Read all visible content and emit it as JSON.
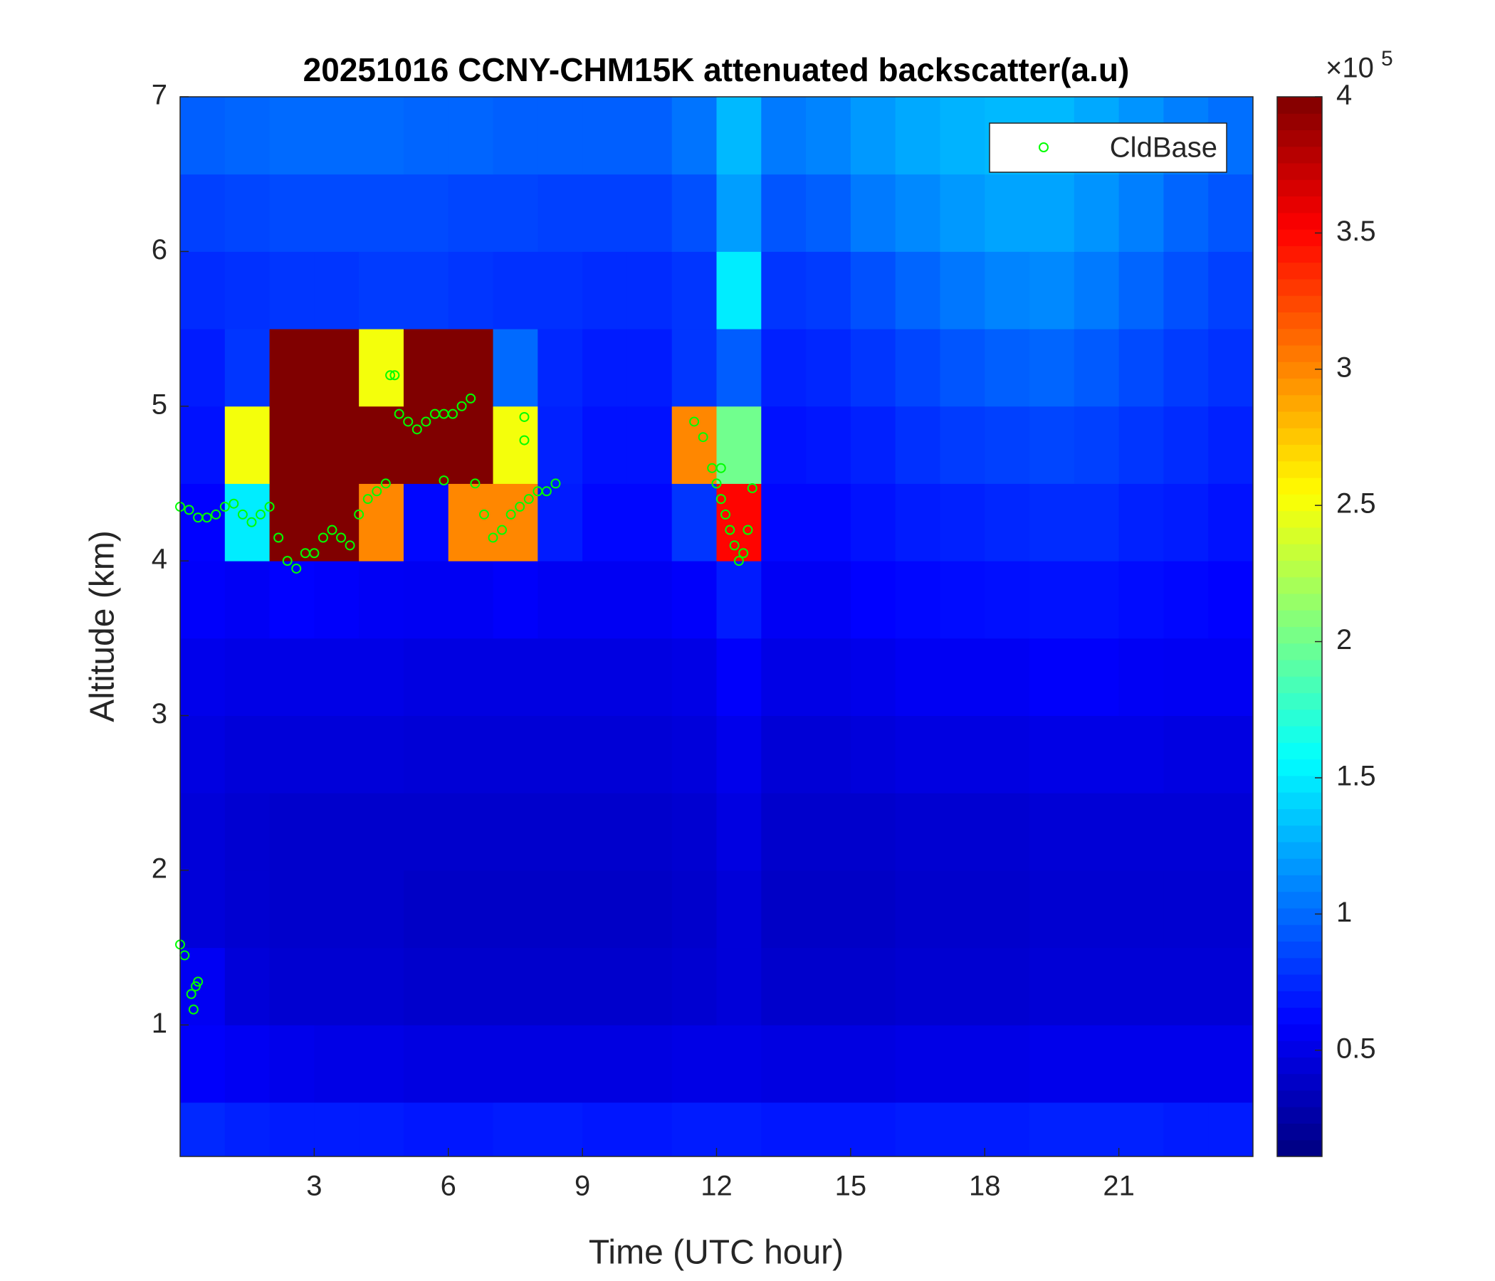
{
  "chart_data": {
    "type": "heatmap",
    "title": "20251016 CCNY-CHM15K attenuated backscatter(a.u)",
    "xlabel": "Time (UTC hour)",
    "ylabel": "Altitude (km)",
    "xlim": [
      0,
      24
    ],
    "ylim": [
      0.15,
      7
    ],
    "xticks": [
      3,
      6,
      9,
      12,
      15,
      18,
      21
    ],
    "yticks": [
      1,
      2,
      3,
      4,
      5,
      6,
      7
    ],
    "x_bins": [
      0,
      1,
      2,
      3,
      4,
      5,
      6,
      7,
      8,
      9,
      10,
      11,
      12,
      13,
      14,
      15,
      16,
      17,
      18,
      19,
      20,
      21,
      22,
      23,
      24
    ],
    "y_bins": [
      0.15,
      0.5,
      1,
      1.5,
      2,
      2.5,
      3,
      3.5,
      4,
      4.5,
      5,
      5.5,
      6,
      6.5,
      7
    ],
    "colormap": "jet",
    "clim": [
      11000,
      400000
    ],
    "cticks": [
      {
        "value": 50000,
        "label": "0.5"
      },
      {
        "value": 100000,
        "label": "1"
      },
      {
        "value": 150000,
        "label": "1.5"
      },
      {
        "value": 200000,
        "label": "2"
      },
      {
        "value": 250000,
        "label": "2.5"
      },
      {
        "value": 300000,
        "label": "3"
      },
      {
        "value": 350000,
        "label": "3.5"
      },
      {
        "value": 400000,
        "label": "4"
      }
    ],
    "colorbar_scale": {
      "base": "×10",
      "exponent": "5"
    },
    "z": [
      [
        75000,
        72000,
        70000,
        70000,
        70000,
        68000,
        68000,
        70000,
        70000,
        68000,
        68000,
        70000,
        70000,
        68000,
        68000,
        68000,
        70000,
        70000,
        70000,
        72000,
        72000,
        72000,
        70000,
        70000
      ],
      [
        58000,
        55000,
        52000,
        50000,
        50000,
        48000,
        48000,
        48000,
        48000,
        48000,
        48000,
        50000,
        50000,
        48000,
        48000,
        48000,
        50000,
        50000,
        50000,
        52000,
        52000,
        52000,
        52000,
        52000
      ],
      [
        55000,
        45000,
        42000,
        42000,
        42000,
        40000,
        40000,
        40000,
        40000,
        40000,
        40000,
        42000,
        45000,
        40000,
        40000,
        40000,
        42000,
        42000,
        42000,
        44000,
        44000,
        44000,
        44000,
        44000
      ],
      [
        45000,
        42000,
        40000,
        40000,
        40000,
        38000,
        38000,
        38000,
        38000,
        38000,
        38000,
        40000,
        45000,
        38000,
        38000,
        38000,
        40000,
        40000,
        40000,
        42000,
        42000,
        42000,
        42000,
        42000
      ],
      [
        45000,
        42000,
        40000,
        40000,
        40000,
        40000,
        40000,
        40000,
        40000,
        40000,
        40000,
        42000,
        48000,
        40000,
        40000,
        40000,
        42000,
        42000,
        42000,
        44000,
        44000,
        44000,
        44000,
        44000
      ],
      [
        48000,
        45000,
        45000,
        45000,
        45000,
        44000,
        44000,
        44000,
        44000,
        44000,
        44000,
        46000,
        52000,
        44000,
        44000,
        46000,
        48000,
        48000,
        48000,
        50000,
        50000,
        50000,
        48000,
        48000
      ],
      [
        52000,
        50000,
        50000,
        50000,
        50000,
        48000,
        48000,
        48000,
        48000,
        48000,
        48000,
        50000,
        58000,
        50000,
        50000,
        52000,
        55000,
        55000,
        55000,
        58000,
        58000,
        56000,
        55000,
        55000
      ],
      [
        58000,
        56000,
        60000,
        58000,
        56000,
        55000,
        55000,
        58000,
        55000,
        55000,
        55000,
        58000,
        70000,
        56000,
        56000,
        60000,
        62000,
        64000,
        65000,
        66000,
        66000,
        64000,
        62000,
        60000
      ],
      [
        60000,
        150000,
        400000,
        400000,
        300000,
        62000,
        300000,
        300000,
        70000,
        62000,
        62000,
        80000,
        350000,
        62000,
        62000,
        66000,
        70000,
        72000,
        74000,
        76000,
        76000,
        72000,
        70000,
        66000
      ],
      [
        66000,
        250000,
        400000,
        400000,
        400000,
        400000,
        400000,
        250000,
        72000,
        66000,
        66000,
        300000,
        200000,
        66000,
        68000,
        72000,
        78000,
        82000,
        84000,
        86000,
        84000,
        80000,
        76000,
        72000
      ],
      [
        70000,
        80000,
        400000,
        400000,
        250000,
        400000,
        400000,
        100000,
        74000,
        70000,
        70000,
        80000,
        95000,
        72000,
        74000,
        80000,
        86000,
        92000,
        96000,
        98000,
        94000,
        88000,
        82000,
        78000
      ],
      [
        76000,
        78000,
        80000,
        80000,
        82000,
        82000,
        80000,
        78000,
        78000,
        76000,
        76000,
        80000,
        150000,
        80000,
        82000,
        90000,
        98000,
        105000,
        110000,
        112000,
        106000,
        98000,
        90000,
        84000
      ],
      [
        84000,
        86000,
        88000,
        88000,
        88000,
        88000,
        86000,
        86000,
        84000,
        84000,
        84000,
        90000,
        120000,
        92000,
        96000,
        106000,
        112000,
        118000,
        122000,
        122000,
        116000,
        108000,
        98000,
        92000
      ],
      [
        96000,
        98000,
        100000,
        100000,
        100000,
        98000,
        98000,
        96000,
        96000,
        96000,
        96000,
        104000,
        130000,
        106000,
        110000,
        118000,
        124000,
        128000,
        130000,
        130000,
        124000,
        116000,
        108000,
        102000
      ]
    ],
    "overlay": {
      "type": "scatter",
      "series": [
        {
          "name": "CldBase",
          "color": "#00ff00",
          "x": [
            0.0,
            0.2,
            0.4,
            0.6,
            0.8,
            1.0,
            1.2,
            1.4,
            1.6,
            1.8,
            2.0,
            2.2,
            2.4,
            2.6,
            2.8,
            3.0,
            3.2,
            3.4,
            3.6,
            3.8,
            4.0,
            4.2,
            4.4,
            4.6,
            4.7,
            4.8,
            4.9,
            5.1,
            5.3,
            5.5,
            5.7,
            5.9,
            6.1,
            6.3,
            6.5,
            6.6,
            6.8,
            7.0,
            7.2,
            7.4,
            7.6,
            7.8,
            8.0,
            8.2,
            8.4,
            7.7,
            7.7,
            5.9,
            0.0,
            0.1,
            0.25,
            0.3,
            0.35,
            0.4,
            11.5,
            11.7,
            11.9,
            12.0,
            12.1,
            12.2,
            12.3,
            12.4,
            12.5,
            12.6,
            12.7,
            12.8,
            12.1
          ],
          "values": [
            4.35,
            4.33,
            4.28,
            4.28,
            4.3,
            4.35,
            4.37,
            4.3,
            4.25,
            4.3,
            4.35,
            4.15,
            4.0,
            3.95,
            4.05,
            4.05,
            4.15,
            4.2,
            4.15,
            4.1,
            4.3,
            4.4,
            4.45,
            4.5,
            5.2,
            5.2,
            4.95,
            4.9,
            4.85,
            4.9,
            4.95,
            4.95,
            4.95,
            5.0,
            5.05,
            4.5,
            4.3,
            4.15,
            4.2,
            4.3,
            4.35,
            4.4,
            4.45,
            4.45,
            4.5,
            4.93,
            4.78,
            4.52,
            1.52,
            1.45,
            1.2,
            1.1,
            1.25,
            1.28,
            4.9,
            4.8,
            4.6,
            4.5,
            4.4,
            4.3,
            4.2,
            4.1,
            4.0,
            4.05,
            4.2,
            4.47,
            4.6
          ]
        }
      ]
    },
    "legend": "upper right"
  }
}
